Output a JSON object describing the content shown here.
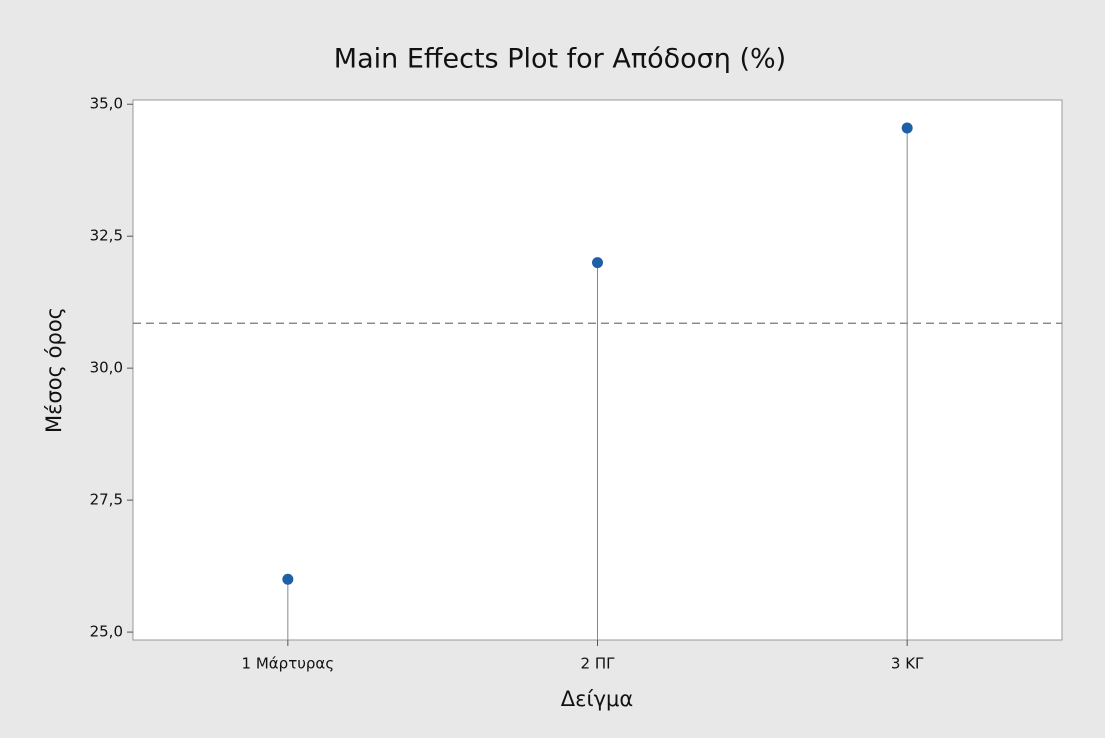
{
  "chart_data": {
    "type": "lollipop",
    "title": "Main Effects Plot for Απόδοση (%)",
    "x_label": "Δείγμα",
    "y_label": "Μέσος όρος",
    "categories": [
      "1 Μάρτυρας",
      "2 ΠΓ",
      "3 ΚΓ"
    ],
    "values": [
      26.0,
      32.0,
      34.55
    ],
    "color": "#1f5fa6",
    "reference_line": 30.85,
    "ylim": [
      24.85,
      35.08
    ],
    "yticks": [
      {
        "value": 25,
        "label": "25,0"
      },
      {
        "value": 27.5,
        "label": "27,5"
      },
      {
        "value": 30,
        "label": "30,0"
      },
      {
        "value": 32.5,
        "label": "32,5"
      },
      {
        "value": 35,
        "label": "35,0"
      }
    ]
  }
}
